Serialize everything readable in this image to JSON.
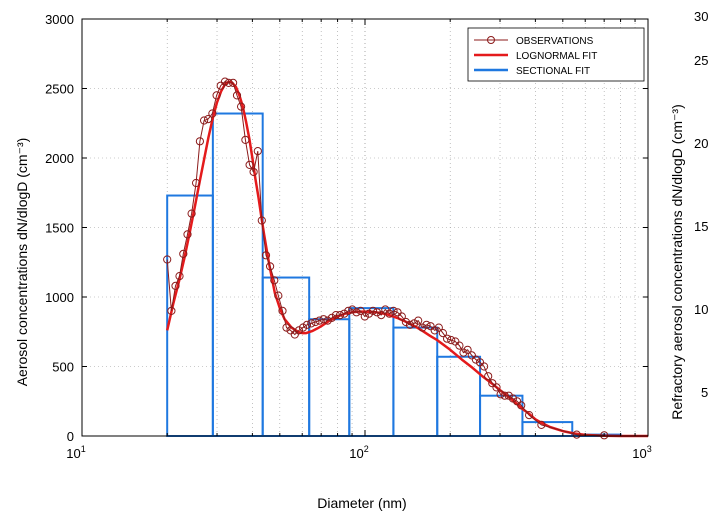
{
  "chart_data": {
    "type": "line",
    "xlabel": "Diameter (nm)",
    "ylabel": "Aerosol concentrations dN/dlogD (cm⁻³)",
    "ylabel_right": "Refractory aerosol concentrations dN/dlogD (cm⁻³)",
    "xscale": "log",
    "xlim": [
      10,
      1000
    ],
    "ylim": [
      0,
      3000
    ],
    "x_ticks": [
      {
        "value": 10,
        "base": "10",
        "exp": "1"
      },
      {
        "value": 100,
        "base": "10",
        "exp": "2"
      },
      {
        "value": 1000,
        "base": "10",
        "exp": "3"
      }
    ],
    "y_ticks": [
      "0",
      "500",
      "1000",
      "1500",
      "2000",
      "2500",
      "3000"
    ],
    "right_ticks": [
      "5",
      "10",
      "15",
      "20",
      "25",
      "30"
    ],
    "grid": true,
    "legend_position": "top-right",
    "legend": [
      "OBSERVATIONS",
      "LOGNORMAL FIT",
      "SECTIONAL FIT"
    ],
    "colors": {
      "observations": "#8b1a1a",
      "lognormal": "#e41a1c",
      "sectional": "#1f78e0"
    },
    "series": [
      {
        "name": "OBSERVATIONS",
        "x": [
          20.0,
          20.7,
          21.4,
          22.1,
          22.8,
          23.6,
          24.4,
          25.3,
          26.1,
          27.0,
          27.9,
          28.9,
          29.9,
          30.9,
          32.0,
          33.0,
          34.2,
          35.3,
          36.5,
          37.8,
          39.1,
          40.4,
          41.8,
          43.2,
          44.7,
          46.2,
          47.8,
          49.4,
          51.1,
          52.8,
          54.6,
          56.5,
          58.4,
          60.4,
          62.4,
          64.6,
          66.8,
          69.0,
          71.4,
          73.8,
          76.3,
          78.9,
          81.6,
          84.4,
          87.3,
          90.2,
          93.3,
          96.5,
          99.8,
          103.2,
          106.7,
          110.3,
          114.1,
          118.0,
          122.0,
          126.1,
          130.4,
          134.9,
          139.5,
          144.2,
          149.1,
          154.2,
          159.5,
          164.9,
          170.5,
          176.3,
          182.3,
          188.5,
          195.0,
          201.6,
          208.5,
          215.6,
          222.9,
          230.5,
          238.4,
          246.5,
          254.9,
          263.6,
          272.5,
          281.8,
          291.4,
          301.4,
          311.6,
          322.2,
          333.2,
          344.6,
          356.3,
          380.0,
          420.0,
          560.0,
          700.0
        ],
        "values": [
          1270,
          900,
          1080,
          1150,
          1310,
          1450,
          1600,
          1820,
          2120,
          2270,
          2280,
          2320,
          2450,
          2520,
          2550,
          2540,
          2540,
          2450,
          2370,
          2130,
          1950,
          1900,
          2050,
          1550,
          1300,
          1220,
          1120,
          1010,
          900,
          780,
          760,
          730,
          760,
          780,
          800,
          810,
          820,
          830,
          840,
          830,
          850,
          870,
          870,
          880,
          900,
          910,
          890,
          900,
          860,
          880,
          900,
          890,
          870,
          910,
          880,
          900,
          890,
          860,
          820,
          800,
          810,
          830,
          780,
          800,
          790,
          760,
          780,
          740,
          700,
          690,
          680,
          650,
          600,
          620,
          580,
          550,
          530,
          500,
          430,
          380,
          350,
          300,
          290,
          290,
          270,
          250,
          220,
          150,
          80,
          10,
          5
        ]
      },
      {
        "name": "LOGNORMAL FIT",
        "x": [
          20,
          21,
          22,
          23,
          24,
          25,
          26,
          27,
          28,
          29,
          30,
          31,
          32,
          33,
          34,
          35,
          36,
          37,
          38,
          39,
          40,
          41,
          42,
          43,
          44,
          45,
          46,
          48,
          50,
          52,
          55,
          58,
          60,
          62,
          65,
          68,
          70,
          75,
          80,
          85,
          90,
          95,
          100,
          110,
          120,
          130,
          140,
          150,
          160,
          170,
          180,
          200,
          220,
          240,
          260,
          280,
          300,
          320,
          340,
          360,
          380,
          400,
          420,
          450,
          500,
          550,
          600,
          650,
          700,
          750,
          800,
          900,
          1000
        ],
        "values": [
          760,
          950,
          1110,
          1280,
          1460,
          1640,
          1820,
          1990,
          2150,
          2290,
          2400,
          2480,
          2530,
          2550,
          2540,
          2510,
          2450,
          2370,
          2260,
          2140,
          2000,
          1850,
          1720,
          1580,
          1450,
          1330,
          1220,
          1030,
          920,
          840,
          780,
          750,
          740,
          740,
          755,
          775,
          790,
          830,
          860,
          880,
          890,
          895,
          895,
          890,
          875,
          850,
          820,
          790,
          755,
          720,
          690,
          620,
          550,
          490,
          430,
          380,
          330,
          285,
          240,
          195,
          160,
          120,
          95,
          65,
          35,
          18,
          8,
          4,
          2,
          1,
          0,
          0,
          0
        ]
      },
      {
        "name": "SECTIONAL FIT",
        "bins": [
          {
            "from": 20,
            "to": 29,
            "value": 1730
          },
          {
            "from": 29,
            "to": 43.5,
            "value": 2320
          },
          {
            "from": 43.5,
            "to": 63.5,
            "value": 1140
          },
          {
            "from": 63.5,
            "to": 88,
            "value": 840
          },
          {
            "from": 88,
            "to": 126,
            "value": 920
          },
          {
            "from": 126,
            "to": 180,
            "value": 780
          },
          {
            "from": 180,
            "to": 255,
            "value": 570
          },
          {
            "from": 255,
            "to": 360,
            "value": 290
          },
          {
            "from": 360,
            "to": 540,
            "value": 100
          },
          {
            "from": 540,
            "to": 800,
            "value": 10
          }
        ]
      }
    ]
  }
}
